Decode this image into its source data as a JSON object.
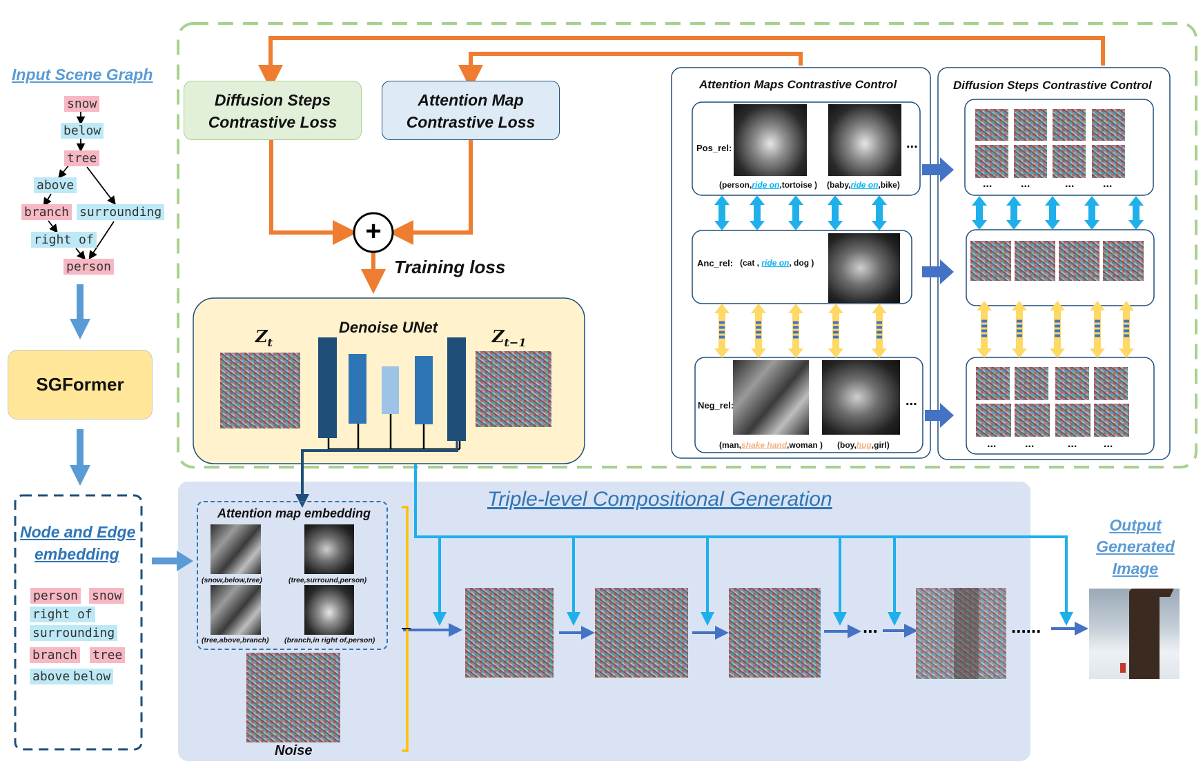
{
  "scene_graph": {
    "title": "Input Scene Graph",
    "nodes": [
      "snow",
      "below",
      "tree",
      "above",
      "surrounding",
      "branch",
      "right of",
      "person"
    ]
  },
  "sgformer": {
    "label": "SGFormer"
  },
  "embedding": {
    "title_line1": "Node and Edge",
    "title_line2": "embedding",
    "tags": [
      "person",
      "snow",
      "right of",
      "surrounding",
      "branch",
      "tree",
      "above",
      "below"
    ]
  },
  "losses": {
    "diffusion_line1": "Diffusion Steps",
    "diffusion_line2": "Contrastive Loss",
    "attention_line1": "Attention Map",
    "attention_line2": "Contrastive Loss",
    "plus": "+",
    "training_loss": "Training loss"
  },
  "unet": {
    "title": "Denoise UNet",
    "zt": "Z",
    "zt_sub": "t",
    "zt1": "Z",
    "zt1_sub": "t−1"
  },
  "attention_control": {
    "title": "Attention Maps Contrastive Control",
    "pos_label": "Pos_rel:",
    "pos_caption1_pre": "(person,",
    "pos_caption1_rel": "ride on",
    "pos_caption1_post": ",tortoise )",
    "pos_caption2_pre": "(baby,",
    "pos_caption2_rel": "ride on",
    "pos_caption2_post": ",bike)",
    "anc_label": "Anc_rel:",
    "anc_caption_pre": "(cat ,",
    "anc_caption_rel": "ride on",
    "anc_caption_post": ", dog )",
    "neg_label": "Neg_rel:",
    "neg_caption1_pre": "(man,",
    "neg_caption1_rel": "shake hand",
    "neg_caption1_post": ",woman )",
    "neg_caption2_pre": "(boy,",
    "neg_caption2_rel": "hug",
    "neg_caption2_post": ",girl)",
    "ellipsis": "..."
  },
  "diffusion_control": {
    "title": "Diffusion Steps Contrastive Control",
    "ellipsis": "..."
  },
  "generation": {
    "title": "Triple-level Compositional Generation",
    "attention_embedding_title": "Attention map embedding",
    "maps": [
      "(snow,below,tree)",
      "(tree,surround,person)",
      "(tree,above,branch)",
      "(branch,in right of,person)"
    ],
    "noise_label": "Noise",
    "dots1": "...",
    "dots2": "......"
  },
  "output": {
    "line1": "Output",
    "line2": "Generated",
    "line3": "Image"
  },
  "colors": {
    "orange": "#ee7d31",
    "blue_arrow": "#5b9bd5",
    "cyan_arrow": "#1fb0ec",
    "dark_blue": "#1f4e79",
    "green_dash": "#a9d18e",
    "title_blue": "#2e75b6"
  }
}
